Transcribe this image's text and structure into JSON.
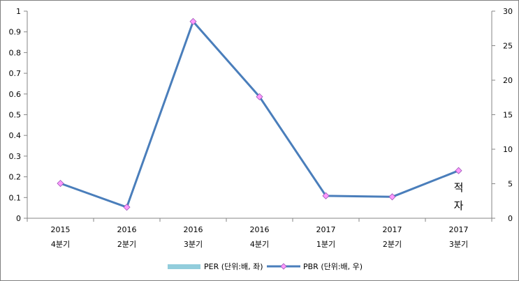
{
  "chart_data": {
    "type": "line",
    "categories": [
      [
        "2015",
        "4분기"
      ],
      [
        "2016",
        "2분기"
      ],
      [
        "2016",
        "3분기"
      ],
      [
        "2016",
        "4분기"
      ],
      [
        "2017",
        "1분기"
      ],
      [
        "2017",
        "2분기"
      ],
      [
        "2017",
        "3분기"
      ]
    ],
    "series": [
      {
        "name": "PER (단위:배, 좌)",
        "axis": "left",
        "type": "bar",
        "values": [
          null,
          null,
          null,
          null,
          null,
          null,
          null
        ],
        "color": "#92cddc"
      },
      {
        "name": "PBR (단위:배, 우)",
        "axis": "right",
        "type": "line",
        "values": [
          5.05,
          1.6,
          28.5,
          17.6,
          3.25,
          3.1,
          6.9
        ],
        "color": "#4a7ebb",
        "marker_color": "#ff99ff"
      }
    ],
    "y_left": {
      "range": [
        0,
        1
      ],
      "ticks": [
        "0",
        "0.1",
        "0.2",
        "0.3",
        "0.4",
        "0.5",
        "0.6",
        "0.7",
        "0.8",
        "0.9",
        "1"
      ]
    },
    "y_right": {
      "range": [
        0,
        30
      ],
      "ticks": [
        "0",
        "5",
        "10",
        "15",
        "20",
        "25",
        "30"
      ]
    },
    "annotation": {
      "text_line1": "적",
      "text_line2": "자"
    },
    "legend_position": "bottom",
    "grid": false
  }
}
